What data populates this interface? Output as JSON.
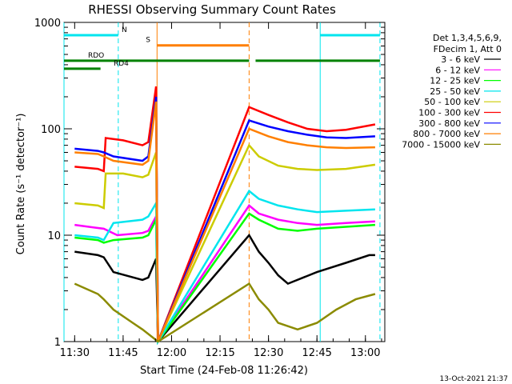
{
  "chart_data": {
    "type": "line",
    "title": "RHESSI Observing Summary Count Rates",
    "xlabel": "Start Time (24-Feb-08 11:26:42)",
    "ylabel": "Count Rate (s⁻¹ detector⁻¹)",
    "y_scale": "log",
    "ylim": [
      1,
      1000
    ],
    "xlim": [
      "11:26:42",
      "13:06:00"
    ],
    "x_ticks": [
      "11:30",
      "11:45",
      "12:00",
      "12:15",
      "12:30",
      "12:45",
      "13:00"
    ],
    "y_ticks": [
      "1",
      "10",
      "100",
      "1000"
    ],
    "footer_date": "13-Oct-2021 21:37",
    "legend_header": [
      "Det 1,3,4,5,6,9,",
      "FDecim 1, Att 0"
    ],
    "segments": [
      {
        "label": "N",
        "color": "#00e5ee",
        "level": 0.96,
        "ranges": [
          [
            "11:26:42",
            "11:43:30"
          ],
          [
            "12:46:00",
            "13:04:30"
          ]
        ]
      },
      {
        "label": "S",
        "color": "#ff7f00",
        "level": 0.928,
        "ranges": [
          [
            "11:55:30",
            "12:24:00"
          ]
        ]
      },
      {
        "label": "RDO",
        "color": "#008200",
        "level": 0.88,
        "ranges": [
          [
            "11:26:42",
            "12:24:00"
          ],
          [
            "12:26:00",
            "13:04:30"
          ]
        ]
      },
      {
        "label": "RD4",
        "color": "#008200",
        "level": 0.855,
        "ranges": [
          [
            "11:26:42",
            "11:38:00"
          ]
        ]
      }
    ],
    "vlines": [
      {
        "t": "11:26:42",
        "color": "#00e5ee",
        "style": "solid"
      },
      {
        "t": "11:43:30",
        "color": "#00e5ee",
        "style": "dashed"
      },
      {
        "t": "11:55:30",
        "color": "#ff7f00",
        "style": "solid"
      },
      {
        "t": "12:24:00",
        "color": "#ff7f00",
        "style": "dashed"
      },
      {
        "t": "12:46:00",
        "color": "#00e5ee",
        "style": "solid"
      },
      {
        "t": "13:04:30",
        "color": "#00e5ee",
        "style": "dashed"
      }
    ],
    "series": [
      {
        "name": "3 - 6 keV",
        "color": "#000000",
        "values": [
          [
            11.5,
            7
          ],
          [
            11.62,
            6.5
          ],
          [
            11.65,
            6.2
          ],
          [
            11.7,
            4.5
          ],
          [
            11.85,
            3.8
          ],
          [
            11.88,
            4
          ],
          [
            11.92,
            6
          ],
          [
            11.93,
            1
          ],
          [
            12.4,
            10
          ],
          [
            12.45,
            7
          ],
          [
            12.5,
            5.5
          ],
          [
            12.55,
            4.2
          ],
          [
            12.6,
            3.5
          ],
          [
            12.75,
            4.5
          ],
          [
            12.9,
            5.5
          ],
          [
            13.02,
            6.5
          ],
          [
            13.05,
            6.5
          ]
        ]
      },
      {
        "name": "6 - 12 keV",
        "color": "#ff00ff",
        "values": [
          [
            11.5,
            12.5
          ],
          [
            11.6,
            11.8
          ],
          [
            11.65,
            11.5
          ],
          [
            11.72,
            10
          ],
          [
            11.85,
            10.5
          ],
          [
            11.88,
            11
          ],
          [
            11.92,
            15
          ],
          [
            11.93,
            1
          ],
          [
            12.4,
            19
          ],
          [
            12.45,
            16
          ],
          [
            12.55,
            14
          ],
          [
            12.65,
            13
          ],
          [
            12.75,
            12.5
          ],
          [
            12.9,
            13
          ],
          [
            13.05,
            13.5
          ]
        ]
      },
      {
        "name": "12 - 25 keV",
        "color": "#00ff00",
        "values": [
          [
            11.5,
            9.5
          ],
          [
            11.62,
            9
          ],
          [
            11.65,
            8.5
          ],
          [
            11.7,
            9
          ],
          [
            11.85,
            9.5
          ],
          [
            11.88,
            10
          ],
          [
            11.92,
            14
          ],
          [
            11.93,
            1
          ],
          [
            12.4,
            16
          ],
          [
            12.45,
            14
          ],
          [
            12.55,
            11.5
          ],
          [
            12.65,
            11
          ],
          [
            12.75,
            11.5
          ],
          [
            12.9,
            12
          ],
          [
            13.05,
            12.5
          ]
        ]
      },
      {
        "name": "25 - 50 keV",
        "color": "#00e5ee",
        "values": [
          [
            11.5,
            10
          ],
          [
            11.62,
            9.5
          ],
          [
            11.65,
            9
          ],
          [
            11.7,
            13
          ],
          [
            11.85,
            14
          ],
          [
            11.88,
            15
          ],
          [
            11.92,
            20
          ],
          [
            11.93,
            1
          ],
          [
            12.4,
            26
          ],
          [
            12.45,
            22
          ],
          [
            12.55,
            19
          ],
          [
            12.65,
            17.5
          ],
          [
            12.75,
            16.5
          ],
          [
            12.9,
            17
          ],
          [
            13.05,
            17.5
          ]
        ]
      },
      {
        "name": "50 - 100 keV",
        "color": "#cccc00",
        "values": [
          [
            11.5,
            20
          ],
          [
            11.62,
            19
          ],
          [
            11.65,
            18
          ],
          [
            11.66,
            38
          ],
          [
            11.75,
            38
          ],
          [
            11.85,
            35
          ],
          [
            11.88,
            37
          ],
          [
            11.92,
            60
          ],
          [
            11.93,
            1
          ],
          [
            12.4,
            70
          ],
          [
            12.45,
            55
          ],
          [
            12.55,
            45
          ],
          [
            12.65,
            42
          ],
          [
            12.75,
            41
          ],
          [
            12.9,
            42
          ],
          [
            13.05,
            46
          ]
        ]
      },
      {
        "name": "100 - 300 keV",
        "color": "#ff0000",
        "values": [
          [
            11.5,
            44
          ],
          [
            11.62,
            42
          ],
          [
            11.65,
            40
          ],
          [
            11.66,
            82
          ],
          [
            11.75,
            78
          ],
          [
            11.85,
            70
          ],
          [
            11.88,
            75
          ],
          [
            11.92,
            250
          ],
          [
            11.93,
            1
          ],
          [
            12.4,
            160
          ],
          [
            12.5,
            135
          ],
          [
            12.6,
            115
          ],
          [
            12.7,
            100
          ],
          [
            12.8,
            95
          ],
          [
            12.9,
            98
          ],
          [
            13.05,
            110
          ]
        ]
      },
      {
        "name": "300 - 800 keV",
        "color": "#0000ff",
        "values": [
          [
            11.5,
            65
          ],
          [
            11.62,
            62
          ],
          [
            11.65,
            60
          ],
          [
            11.7,
            55
          ],
          [
            11.85,
            50
          ],
          [
            11.88,
            55
          ],
          [
            11.92,
            200
          ],
          [
            11.93,
            1
          ],
          [
            12.4,
            120
          ],
          [
            12.5,
            105
          ],
          [
            12.6,
            95
          ],
          [
            12.7,
            88
          ],
          [
            12.8,
            83
          ],
          [
            12.9,
            82
          ],
          [
            13.05,
            85
          ]
        ]
      },
      {
        "name": "800 - 7000 keV",
        "color": "#ff7f00",
        "values": [
          [
            11.5,
            60
          ],
          [
            11.62,
            58
          ],
          [
            11.65,
            55
          ],
          [
            11.7,
            50
          ],
          [
            11.85,
            46
          ],
          [
            11.88,
            50
          ],
          [
            11.92,
            180
          ],
          [
            11.93,
            1
          ],
          [
            12.4,
            100
          ],
          [
            12.5,
            85
          ],
          [
            12.6,
            75
          ],
          [
            12.7,
            70
          ],
          [
            12.8,
            67
          ],
          [
            12.9,
            66
          ],
          [
            13.05,
            67
          ]
        ]
      },
      {
        "name": "7000 - 15000 keV",
        "color": "#8b8b00",
        "values": [
          [
            11.5,
            3.5
          ],
          [
            11.62,
            2.8
          ],
          [
            11.65,
            2.5
          ],
          [
            11.7,
            2
          ],
          [
            11.8,
            1.5
          ],
          [
            11.85,
            1.3
          ],
          [
            11.93,
            1
          ],
          [
            12.4,
            3.5
          ],
          [
            12.45,
            2.5
          ],
          [
            12.5,
            2
          ],
          [
            12.55,
            1.5
          ],
          [
            12.65,
            1.3
          ],
          [
            12.75,
            1.5
          ],
          [
            12.85,
            2
          ],
          [
            12.95,
            2.5
          ],
          [
            13.05,
            2.8
          ]
        ]
      }
    ]
  }
}
